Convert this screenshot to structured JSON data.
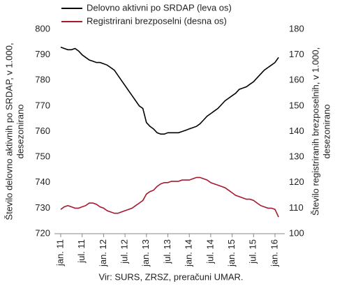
{
  "chart_data": {
    "type": "line",
    "y_label": [
      "Število delovno aktivnih po SRDAP, v 1.000,",
      "desezonirano"
    ],
    "y2_label": [
      "Število registriranih brezposelnih, v 1.000,",
      "desezonirano"
    ],
    "source": "Vir: SURS, ZRSZ, preračuni UMAR.",
    "categories": [
      "jan. 11",
      null,
      null,
      null,
      null,
      null,
      "jul. 11",
      null,
      null,
      null,
      null,
      null,
      "jan. 12",
      null,
      null,
      null,
      null,
      null,
      "jul. 12",
      null,
      null,
      null,
      null,
      null,
      "jan. 13",
      null,
      null,
      null,
      null,
      null,
      "jul. 13",
      null,
      null,
      null,
      null,
      null,
      "jan. 14",
      null,
      null,
      null,
      null,
      null,
      "jul. 14",
      null,
      null,
      null,
      null,
      null,
      "jan. 15",
      null,
      null,
      null,
      null,
      null,
      "jul. 15",
      null,
      null,
      null,
      null,
      null,
      "jan. 16",
      null
    ],
    "series": [
      {
        "name": "Delovno aktivni po SRDAP (leva os)",
        "color": "#000000",
        "axis": "y",
        "values": [
          793,
          792.5,
          792,
          792,
          792.5,
          791.5,
          790,
          789,
          788,
          787.5,
          787,
          787,
          786.5,
          786,
          785,
          784,
          782,
          780,
          778,
          776,
          774,
          772,
          770,
          769,
          763.5,
          762,
          761,
          759.5,
          759,
          759,
          759.5,
          759.5,
          759.5,
          759.5,
          760,
          760.5,
          761,
          761.5,
          762,
          763,
          764.5,
          766,
          767,
          768,
          769,
          770.5,
          772,
          773,
          774,
          775,
          776.5,
          777,
          777.5,
          778.5,
          779.5,
          781,
          782.5,
          784,
          785,
          786,
          787,
          789
        ]
      },
      {
        "name": "Registrirani brezposelni (desna os)",
        "color": "#a6192e",
        "axis": "y2",
        "values": [
          109.5,
          110.5,
          111,
          110.5,
          110,
          110,
          110.5,
          111,
          112,
          112,
          111.5,
          110.5,
          110,
          109,
          108.5,
          108,
          108,
          108.5,
          109,
          109.5,
          110,
          111,
          112,
          113,
          115.5,
          116.5,
          117,
          118.5,
          119.5,
          120,
          120,
          120.5,
          120.5,
          120.5,
          121,
          121,
          121,
          121.5,
          122,
          122,
          121.5,
          121,
          120,
          119.5,
          119,
          118.5,
          118,
          117,
          116,
          115,
          114.5,
          114,
          113.5,
          113.5,
          113,
          112,
          111,
          110.5,
          110,
          110,
          109.5,
          106.5
        ]
      }
    ],
    "ylim": [
      720,
      800
    ],
    "yticks": [
      720,
      730,
      740,
      750,
      760,
      770,
      780,
      790,
      800
    ],
    "y2lim": [
      100,
      180
    ],
    "y2ticks": [
      100,
      110,
      120,
      130,
      140,
      150,
      160,
      170,
      180
    ],
    "grid": false
  }
}
